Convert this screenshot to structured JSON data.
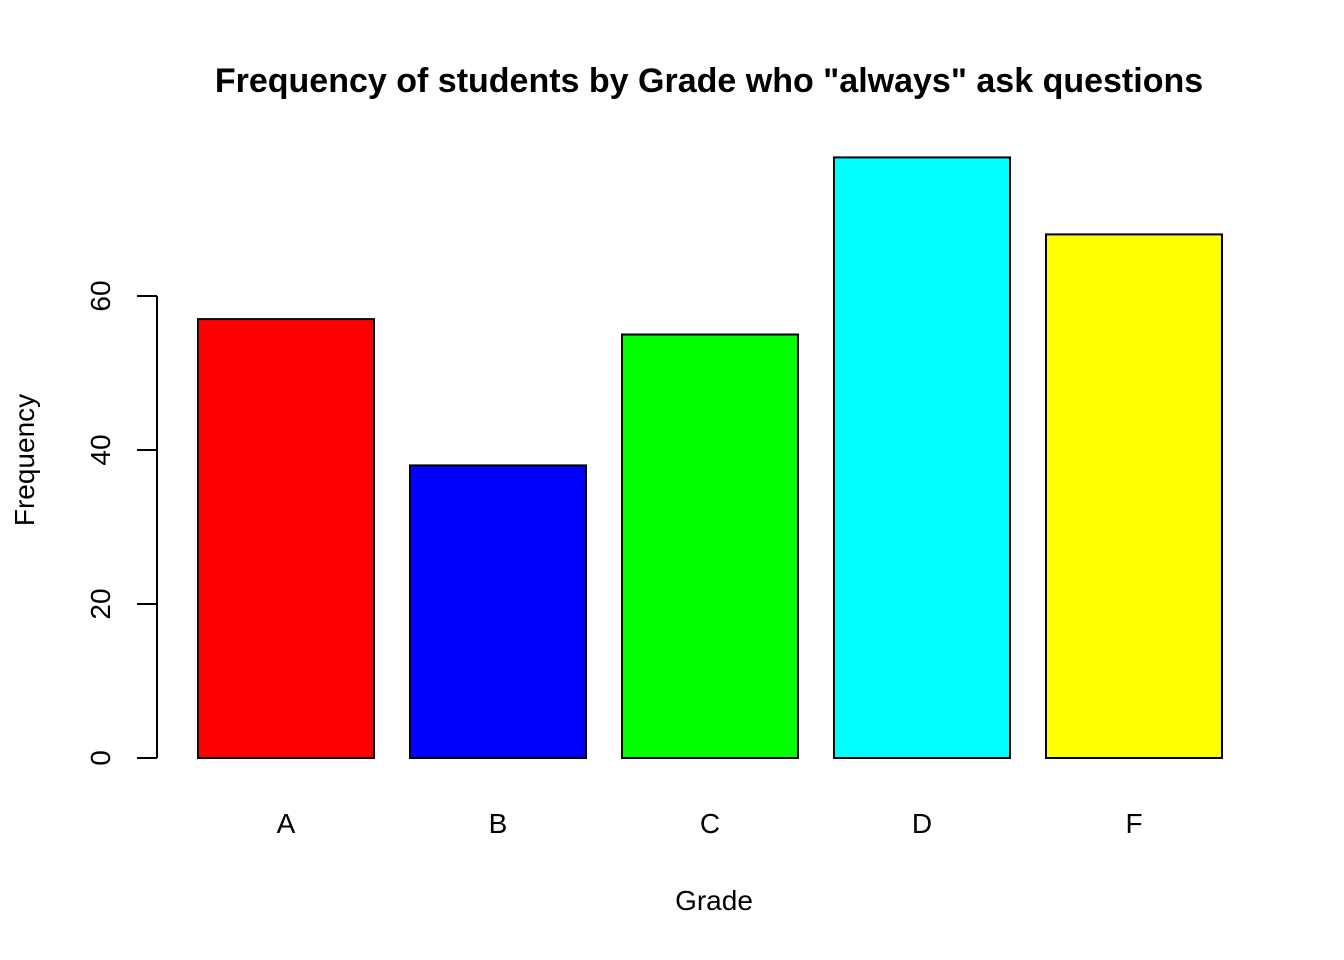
{
  "chart_data": {
    "type": "bar",
    "title": "Frequency of students by Grade who \"always\" ask questions",
    "xlabel": "Grade",
    "ylabel": "Frequency",
    "categories": [
      "A",
      "B",
      "C",
      "D",
      "F"
    ],
    "values": [
      57,
      38,
      55,
      78,
      68
    ],
    "colors": [
      "#ff0000",
      "#0000ff",
      "#00ff00",
      "#00ffff",
      "#ffff00"
    ],
    "ylim": [
      0,
      78
    ],
    "y_ticks": [
      0,
      20,
      40,
      60
    ],
    "y_tick_labels": [
      "0",
      "20",
      "40",
      "60"
    ],
    "grid": false,
    "legend": "none"
  }
}
